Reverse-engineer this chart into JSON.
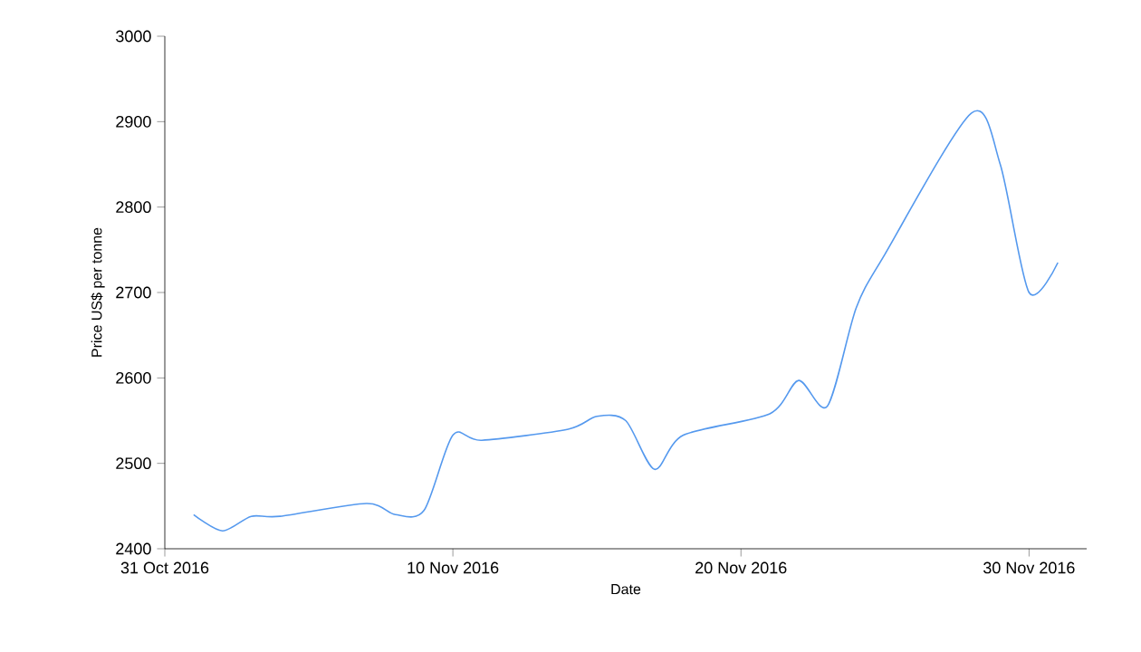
{
  "chart_data": {
    "type": "line",
    "xlabel": "Date",
    "ylabel": "Price US$ per tonne",
    "x": [
      "2016-11-01",
      "2016-11-02",
      "2016-11-03",
      "2016-11-04",
      "2016-11-07",
      "2016-11-08",
      "2016-11-09",
      "2016-11-10",
      "2016-11-11",
      "2016-11-14",
      "2016-11-15",
      "2016-11-16",
      "2016-11-17",
      "2016-11-18",
      "2016-11-21",
      "2016-11-22",
      "2016-11-23",
      "2016-11-24",
      "2016-11-25",
      "2016-11-28",
      "2016-11-29",
      "2016-11-30",
      "2016-12-01"
    ],
    "series": [
      {
        "color": "#5599ee",
        "values": [
          2440,
          2421,
          2438,
          2438,
          2453,
          2440,
          2445,
          2533,
          2527,
          2540,
          2555,
          2550,
          2493,
          2533,
          2558,
          2597,
          2567,
          2682,
          2745,
          2910,
          2850,
          2700,
          2735
        ]
      }
    ],
    "xlim": [
      "2016-10-31",
      "2016-12-02"
    ],
    "xticks": [
      {
        "value": "2016-10-31",
        "label": "31 Oct 2016"
      },
      {
        "value": "2016-11-10",
        "label": "10 Nov 2016"
      },
      {
        "value": "2016-11-20",
        "label": "20 Nov 2016"
      },
      {
        "value": "2016-11-30",
        "label": "30 Nov 2016"
      }
    ],
    "ylim": [
      2400,
      3000
    ],
    "yticks": [
      2400,
      2500,
      2600,
      2700,
      2800,
      2900,
      3000
    ],
    "grid": false,
    "marker": "none",
    "line_style": "solid"
  }
}
